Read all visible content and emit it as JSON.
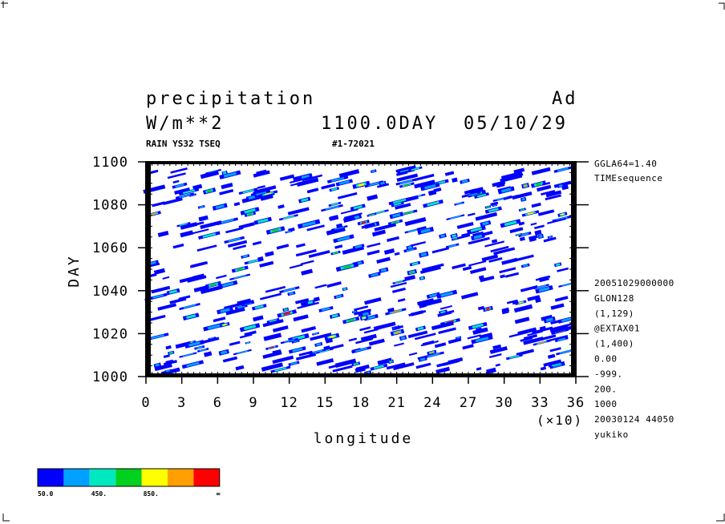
{
  "header": {
    "title": "precipitation",
    "units": "W/m**2",
    "time_label": "1100.0DAY",
    "date_label": "05/10/29",
    "corner_label": "Ad",
    "subtitle_left": "RAIN YS32 TSEQ",
    "subtitle_mid": "#1-72021"
  },
  "side_info": {
    "top": [
      "GGLA64=1.40",
      "TIMEsequence"
    ],
    "lower": [
      "20051029000000",
      "GLON128",
      "(1,129)",
      "@EXTAX01",
      "(1,400)",
      "0.00",
      "-999.",
      "200.",
      "1000",
      "20030124  44050",
      "yukiko"
    ]
  },
  "x_scale_label": "(×10)",
  "colorbar": {
    "colors": [
      "#0000ff",
      "#00a0ff",
      "#00e8c0",
      "#00d020",
      "#ffff00",
      "#ffa000",
      "#ff0000"
    ],
    "labels": [
      "50.0",
      "450.",
      "850.",
      "∞"
    ]
  },
  "chart_data": {
    "type": "heatmap",
    "title": "precipitation",
    "xlabel": "longitude",
    "ylabel": "DAY",
    "xlim": [
      0,
      36
    ],
    "ylim": [
      1000,
      1100
    ],
    "x_ticks": [
      "0",
      "3",
      "6",
      "9",
      "12",
      "15",
      "18",
      "21",
      "24",
      "27",
      "30",
      "33",
      "36"
    ],
    "y_ticks": [
      "1000",
      "1020",
      "1040",
      "1060",
      "1080",
      "1100"
    ],
    "grid": false,
    "legend": "bottom-left colorbar",
    "levels": [
      50,
      250,
      450,
      650,
      850,
      1050,
      "∞"
    ],
    "pattern": "eastward-propagating rain streaks, many short blue/cyan cells with occasional green/yellow/orange/red cores"
  }
}
